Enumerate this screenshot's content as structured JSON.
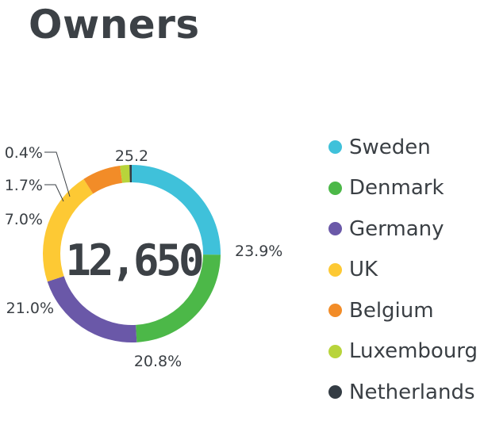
{
  "title": "Owners",
  "chart_data": {
    "type": "donut",
    "center_label": "12,650",
    "series": [
      {
        "name": "Sweden",
        "value": 25.2,
        "label": "25.2",
        "color": "#3fc1da"
      },
      {
        "name": "Denmark",
        "value": 23.9,
        "label": "23.9%",
        "color": "#4cb848"
      },
      {
        "name": "Germany",
        "value": 20.8,
        "label": "20.8%",
        "color": "#6a58a8"
      },
      {
        "name": "UK",
        "value": 21.0,
        "label": "21.0%",
        "color": "#fdc934"
      },
      {
        "name": "Belgium",
        "value": 7.0,
        "label": "7.0%",
        "color": "#f28c28"
      },
      {
        "name": "Luxembourg",
        "value": 1.7,
        "label": "1.7%",
        "color": "#b8d43b"
      },
      {
        "name": "Netherlands",
        "value": 0.4,
        "label": "0.4%",
        "color": "#343c44"
      }
    ],
    "legend_position": "right"
  }
}
